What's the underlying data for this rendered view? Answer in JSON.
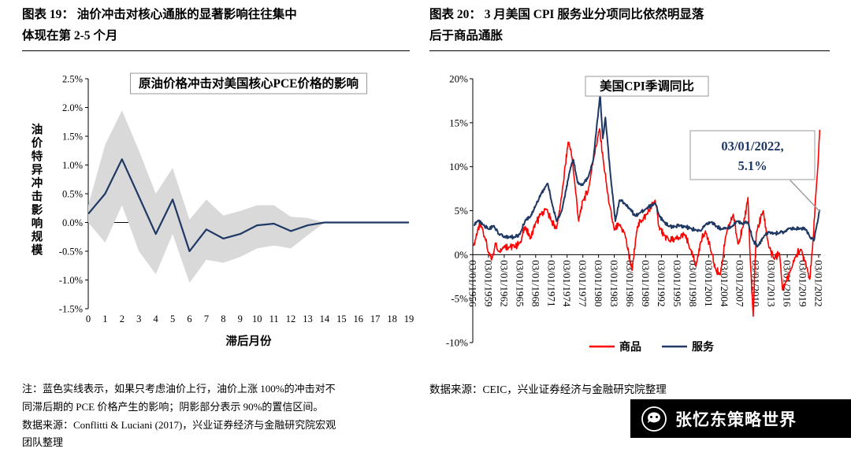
{
  "headers": {
    "fig19": "图表 19： 油价冲击对核心通胀的显著影响往往集中\n体现在第 2-5 个月",
    "fig20": "图表 20： 3 月美国 CPI 服务业分项同比依然明显落\n后于商品通胀"
  },
  "chart_data": [
    {
      "type": "line",
      "title": "原油价格冲击对美国核心PCE价格的影响",
      "xlabel": "滞后月份",
      "ylabel": "油价特异冲击影响规模",
      "ylim": [
        -1.5,
        2.5
      ],
      "yticks": [
        2.5,
        2.0,
        1.5,
        1.0,
        0.5,
        0.0,
        -0.5,
        -1.0,
        -1.5
      ],
      "x": [
        0,
        1,
        2,
        3,
        4,
        5,
        6,
        7,
        8,
        9,
        10,
        11,
        12,
        13,
        14,
        15,
        16,
        17,
        18,
        19
      ],
      "line": {
        "name": "油价上涨100%冲击对核心PCE的影响",
        "color": "#1F3864",
        "values": [
          0.15,
          0.5,
          1.1,
          0.45,
          -0.2,
          0.4,
          -0.5,
          -0.12,
          -0.28,
          -0.2,
          -0.05,
          -0.02,
          -0.15,
          -0.05,
          0,
          0,
          0,
          0,
          0,
          0
        ]
      },
      "band": {
        "name": "90%置信区间",
        "color": "#D9D9D9",
        "upper": [
          0.3,
          1.35,
          1.95,
          1.25,
          0.5,
          0.95,
          0.05,
          0.4,
          0.12,
          0.2,
          0.3,
          0.3,
          0.1,
          0.08,
          0,
          0,
          0,
          0,
          0,
          0
        ],
        "lower": [
          0.0,
          -0.35,
          0.3,
          -0.5,
          -0.9,
          -0.2,
          -1.05,
          -0.65,
          -0.7,
          -0.6,
          -0.45,
          -0.4,
          -0.45,
          -0.22,
          0,
          0,
          0,
          0,
          0,
          0
        ]
      },
      "grid": false,
      "legend_position": "none"
    },
    {
      "type": "line",
      "title": "美国CPI季调同比",
      "ylim": [
        -10,
        20
      ],
      "yticks": [
        20,
        15,
        10,
        5,
        0,
        -5,
        -10
      ],
      "xrange": [
        1956,
        2022.45
      ],
      "xtick_years": [
        1956,
        1959,
        1962,
        1965,
        1968,
        1971,
        1974,
        1977,
        1980,
        1983,
        1986,
        1989,
        1992,
        1995,
        1998,
        2001,
        2004,
        2007,
        2010,
        2013,
        2016,
        2019,
        2022
      ],
      "xtick_labels": [
        "03/01/1956",
        "03/01/1959",
        "03/01/1962",
        "03/01/1965",
        "03/01/1968",
        "03/01/1971",
        "03/01/1974",
        "03/01/1977",
        "03/01/1980",
        "03/01/1983",
        "03/01/1986",
        "03/01/1989",
        "03/01/1992",
        "03/01/1995",
        "03/01/1998",
        "03/01/2001",
        "03/01/2004",
        "03/01/2007",
        "03/01/2010",
        "03/01/2013",
        "03/01/2016",
        "03/01/2019",
        "03/01/2022"
      ],
      "series": [
        {
          "name": "商品",
          "color": "#FF0000",
          "points": [
            [
              1956.2,
              1.0
            ],
            [
              1957.0,
              3.0
            ],
            [
              1957.6,
              3.3
            ],
            [
              1958.4,
              1.8
            ],
            [
              1959.0,
              0.2
            ],
            [
              1959.6,
              -0.6
            ],
            [
              1960.3,
              1.3
            ],
            [
              1961,
              0.4
            ],
            [
              1962,
              1.0
            ],
            [
              1963,
              0.9
            ],
            [
              1964,
              0.9
            ],
            [
              1965,
              1.3
            ],
            [
              1966,
              3.2
            ],
            [
              1967,
              1.8
            ],
            [
              1968,
              3.6
            ],
            [
              1969,
              4.6
            ],
            [
              1970,
              5.2
            ],
            [
              1971,
              3.8
            ],
            [
              1972,
              3.0
            ],
            [
              1973,
              6.8
            ],
            [
              1974.2,
              12.8
            ],
            [
              1974.7,
              12.0
            ],
            [
              1975.4,
              8.5
            ],
            [
              1976.2,
              3.8
            ],
            [
              1977,
              6.2
            ],
            [
              1978,
              7.2
            ],
            [
              1979,
              10.8
            ],
            [
              1980.2,
              14.3
            ],
            [
              1981,
              10.2
            ],
            [
              1982,
              5.8
            ],
            [
              1983,
              2.8
            ],
            [
              1984,
              3.4
            ],
            [
              1985,
              2.4
            ],
            [
              1986.4,
              -1.8
            ],
            [
              1987.4,
              3.2
            ],
            [
              1988.3,
              3.9
            ],
            [
              1989.2,
              4.6
            ],
            [
              1990.8,
              6.2
            ],
            [
              1991.5,
              3.2
            ],
            [
              1992.5,
              2.2
            ],
            [
              1993.5,
              1.6
            ],
            [
              1994.5,
              1.7
            ],
            [
              1995.5,
              1.9
            ],
            [
              1996.4,
              2.3
            ],
            [
              1997.5,
              0.6
            ],
            [
              1998.6,
              -1.3
            ],
            [
              1999.5,
              1.5
            ],
            [
              2000.4,
              2.7
            ],
            [
              2001.5,
              0.3
            ],
            [
              2002.3,
              -1.6
            ],
            [
              2003.2,
              -2.3
            ],
            [
              2004.3,
              2.2
            ],
            [
              2005.7,
              4.6
            ],
            [
              2006.6,
              1.2
            ],
            [
              2007.6,
              3.2
            ],
            [
              2008.5,
              6.5
            ],
            [
              2008.9,
              0.0
            ],
            [
              2009.5,
              -7.0
            ],
            [
              2010.1,
              2.5
            ],
            [
              2011.4,
              5.0
            ],
            [
              2012.5,
              0.8
            ],
            [
              2013.5,
              -0.5
            ],
            [
              2014.5,
              0.2
            ],
            [
              2015.1,
              -4.0
            ],
            [
              2015.8,
              -3.0
            ],
            [
              2016.5,
              -2.0
            ],
            [
              2017.5,
              -0.3
            ],
            [
              2018.5,
              0.6
            ],
            [
              2019.5,
              -0.8
            ],
            [
              2020.3,
              -2.8
            ],
            [
              2020.8,
              0.5
            ],
            [
              2021.4,
              6.5
            ],
            [
              2021.9,
              10.5
            ],
            [
              2022.2,
              14.2
            ]
          ]
        },
        {
          "name": "服务",
          "color": "#1F3864",
          "points": [
            [
              1956.2,
              3.3
            ],
            [
              1957,
              3.9
            ],
            [
              1958,
              3.4
            ],
            [
              1959,
              2.9
            ],
            [
              1960,
              3.3
            ],
            [
              1961,
              2.3
            ],
            [
              1962,
              2.0
            ],
            [
              1963,
              2.0
            ],
            [
              1964,
              2.0
            ],
            [
              1965,
              2.3
            ],
            [
              1966,
              3.9
            ],
            [
              1967,
              4.3
            ],
            [
              1968,
              5.6
            ],
            [
              1969,
              6.9
            ],
            [
              1970.3,
              8.1
            ],
            [
              1971.2,
              5.6
            ],
            [
              1972,
              3.8
            ],
            [
              1973,
              5.0
            ],
            [
              1974.5,
              9.5
            ],
            [
              1975.2,
              10.8
            ],
            [
              1976,
              8.2
            ],
            [
              1977,
              7.9
            ],
            [
              1978,
              8.8
            ],
            [
              1979,
              10.8
            ],
            [
              1980.3,
              18.2
            ],
            [
              1980.8,
              13.2
            ],
            [
              1981.3,
              15.6
            ],
            [
              1982.2,
              9.5
            ],
            [
              1983.2,
              3.8
            ],
            [
              1984,
              6.2
            ],
            [
              1985,
              5.8
            ],
            [
              1986,
              5.2
            ],
            [
              1987,
              4.4
            ],
            [
              1988,
              4.8
            ],
            [
              1989,
              5.2
            ],
            [
              1990.8,
              5.9
            ],
            [
              1991.6,
              4.4
            ],
            [
              1992.5,
              3.7
            ],
            [
              1993.5,
              3.2
            ],
            [
              1994.5,
              3.2
            ],
            [
              1995.5,
              3.3
            ],
            [
              1996.5,
              3.2
            ],
            [
              1997.5,
              3.0
            ],
            [
              1998.5,
              2.8
            ],
            [
              1999.5,
              2.7
            ],
            [
              2000.5,
              3.5
            ],
            [
              2001.5,
              3.7
            ],
            [
              2002.5,
              3.2
            ],
            [
              2003.5,
              2.9
            ],
            [
              2004.5,
              3.0
            ],
            [
              2005.5,
              3.2
            ],
            [
              2006.5,
              3.8
            ],
            [
              2007.5,
              3.5
            ],
            [
              2008.5,
              3.7
            ],
            [
              2009.5,
              1.6
            ],
            [
              2010.3,
              0.9
            ],
            [
              2011.5,
              2.0
            ],
            [
              2012.5,
              2.6
            ],
            [
              2013.5,
              2.4
            ],
            [
              2014.5,
              2.5
            ],
            [
              2015.5,
              2.6
            ],
            [
              2016.5,
              3.0
            ],
            [
              2017.5,
              2.9
            ],
            [
              2018.5,
              3.0
            ],
            [
              2019.5,
              2.9
            ],
            [
              2020.4,
              1.9
            ],
            [
              2021.1,
              1.6
            ],
            [
              2021.6,
              3.2
            ],
            [
              2022.2,
              5.1
            ]
          ]
        }
      ],
      "legend": [
        "商品",
        "服务"
      ],
      "legend_position": "bottom",
      "grid": false,
      "annotation": {
        "line1": "03/01/2022,",
        "line2": "5.1%",
        "color": "#1F3864",
        "target_x": 2022.2,
        "target_y": 5.1
      }
    }
  ],
  "footnotes": {
    "left": "注：蓝色实线表示，如果只考虑油价上行，油价上涨 100%的冲击对不\n同滞后期的 PCE 价格产生的影响；阴影部分表示 90%的置信区间。\n数据来源：Conflitti & Luciani (2017)，兴业证券经济与金融研究院宏观\n团队整理",
    "right": "数据来源：CEIC，兴业证券经济与金融研究院整理"
  },
  "footer": {
    "brand": "张忆东策略世界"
  }
}
